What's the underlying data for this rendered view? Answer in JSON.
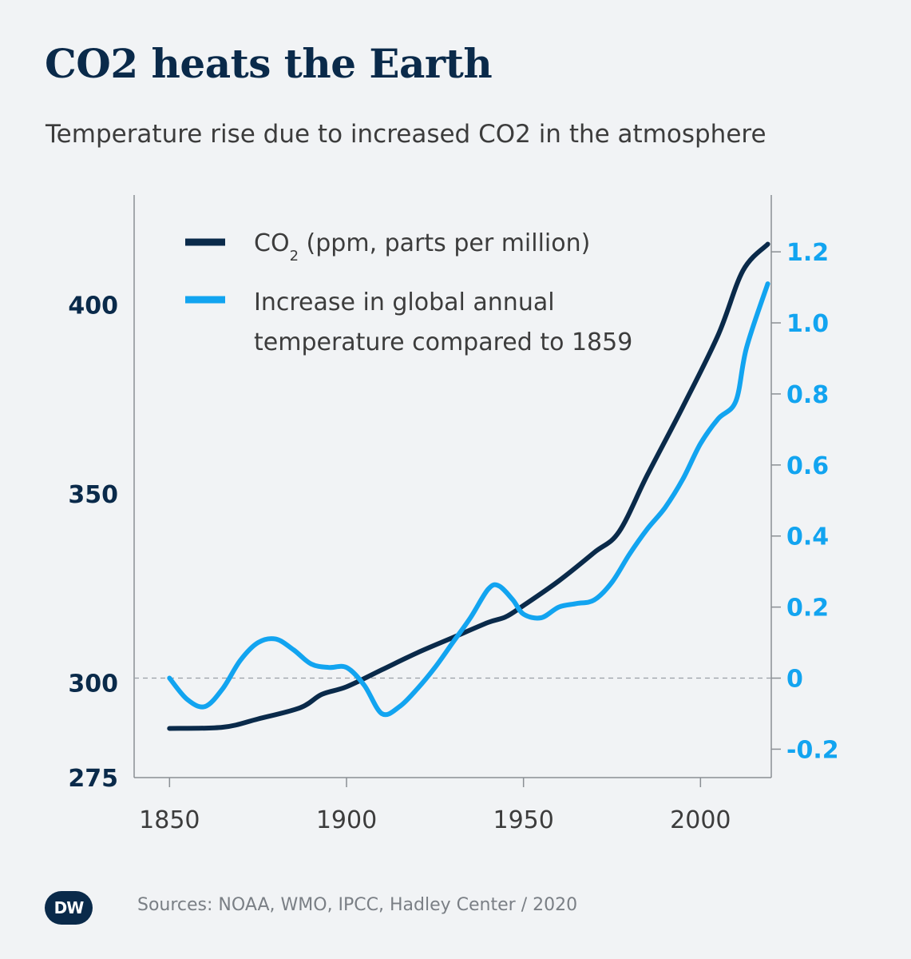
{
  "title": "CO2 heats the Earth",
  "subtitle": "Temperature rise due to increased CO2 in the atmosphere",
  "source": "Sources: NOAA, WMO, IPCC, Hadley Center / 2020",
  "logo": "DW",
  "colors": {
    "co2": "#0a2a4a",
    "temperature": "#12a4f0",
    "axis": "#8a8f94",
    "baseline": "#9aa0a6"
  },
  "chart_data": {
    "type": "line",
    "legend_position": "top-left",
    "x_ticks": [
      1850,
      1900,
      1950,
      2000
    ],
    "xlim": [
      1840,
      2020
    ],
    "left_axis": {
      "ticks": [
        275,
        300,
        350,
        400
      ],
      "ylim": [
        275,
        429
      ]
    },
    "right_axis": {
      "ticks": [
        "-0.2",
        "0",
        "0.2",
        "0.4",
        "0.6",
        "0.8",
        "1.0",
        "1.2"
      ],
      "tick_values": [
        -0.2,
        0,
        0.2,
        0.4,
        0.6,
        0.8,
        1.0,
        1.2
      ],
      "ylim": [
        -0.28,
        1.36
      ]
    },
    "baseline_temperature": 0,
    "series": [
      {
        "name": "CO₂ (ppm, parts per million)",
        "name_main": "CO",
        "name_sub": "2",
        "name_rest": " (ppm, parts per million)",
        "axis": "left",
        "points": [
          [
            1850,
            288
          ],
          [
            1865,
            288.3
          ],
          [
            1875,
            290.5
          ],
          [
            1887,
            293.5
          ],
          [
            1893,
            297
          ],
          [
            1900,
            299
          ],
          [
            1910,
            303.5
          ],
          [
            1920,
            308
          ],
          [
            1930,
            312
          ],
          [
            1940,
            316
          ],
          [
            1945,
            317.5
          ],
          [
            1950,
            320.5
          ],
          [
            1960,
            327
          ],
          [
            1970,
            334.5
          ],
          [
            1977,
            340
          ],
          [
            1985,
            355
          ],
          [
            1995,
            373
          ],
          [
            2005,
            392
          ],
          [
            2012,
            409
          ],
          [
            2019,
            416
          ]
        ]
      },
      {
        "name": "Increase in global annual temperature compared to 1859",
        "name_line1": "Increase in global annual",
        "name_line2": "temperature compared to 1859",
        "axis": "right",
        "points": [
          [
            1850,
            0.0
          ],
          [
            1855,
            -0.06
          ],
          [
            1860,
            -0.08
          ],
          [
            1865,
            -0.03
          ],
          [
            1870,
            0.05
          ],
          [
            1875,
            0.1
          ],
          [
            1880,
            0.11
          ],
          [
            1885,
            0.08
          ],
          [
            1890,
            0.04
          ],
          [
            1895,
            0.03
          ],
          [
            1900,
            0.03
          ],
          [
            1905,
            -0.02
          ],
          [
            1910,
            -0.1
          ],
          [
            1915,
            -0.08
          ],
          [
            1920,
            -0.03
          ],
          [
            1925,
            0.03
          ],
          [
            1930,
            0.1
          ],
          [
            1935,
            0.17
          ],
          [
            1940,
            0.25
          ],
          [
            1943,
            0.26
          ],
          [
            1947,
            0.22
          ],
          [
            1950,
            0.18
          ],
          [
            1955,
            0.17
          ],
          [
            1960,
            0.2
          ],
          [
            1965,
            0.21
          ],
          [
            1970,
            0.22
          ],
          [
            1975,
            0.27
          ],
          [
            1980,
            0.35
          ],
          [
            1985,
            0.42
          ],
          [
            1990,
            0.48
          ],
          [
            1995,
            0.56
          ],
          [
            2000,
            0.66
          ],
          [
            2005,
            0.73
          ],
          [
            2010,
            0.78
          ],
          [
            2013,
            0.93
          ],
          [
            2019,
            1.11
          ]
        ]
      }
    ]
  }
}
